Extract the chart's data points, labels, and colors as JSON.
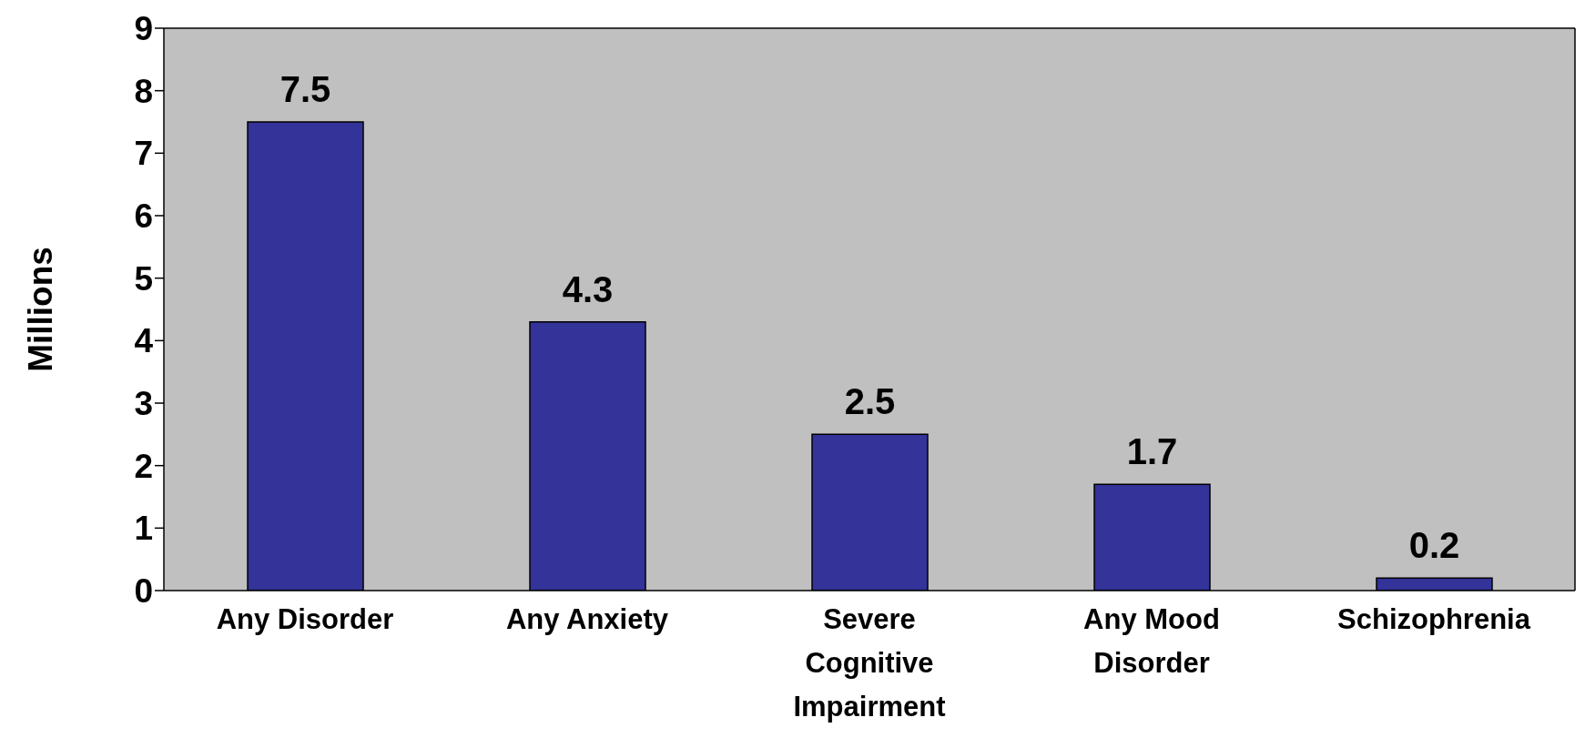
{
  "chart_data": {
    "type": "bar",
    "ylabel": "Millions",
    "categories": [
      "Any Disorder",
      "Any Anxiety",
      "Severe Cognitive Impairment",
      "Any Mood Disorder",
      "Schizophrenia"
    ],
    "values": [
      7.5,
      4.3,
      2.5,
      1.7,
      0.2
    ],
    "color": "#333399",
    "ylim": [
      0,
      9
    ],
    "yticks": [
      0,
      1,
      2,
      3,
      4,
      5,
      6,
      7,
      8,
      9
    ],
    "grid": false,
    "data_labels": true
  }
}
